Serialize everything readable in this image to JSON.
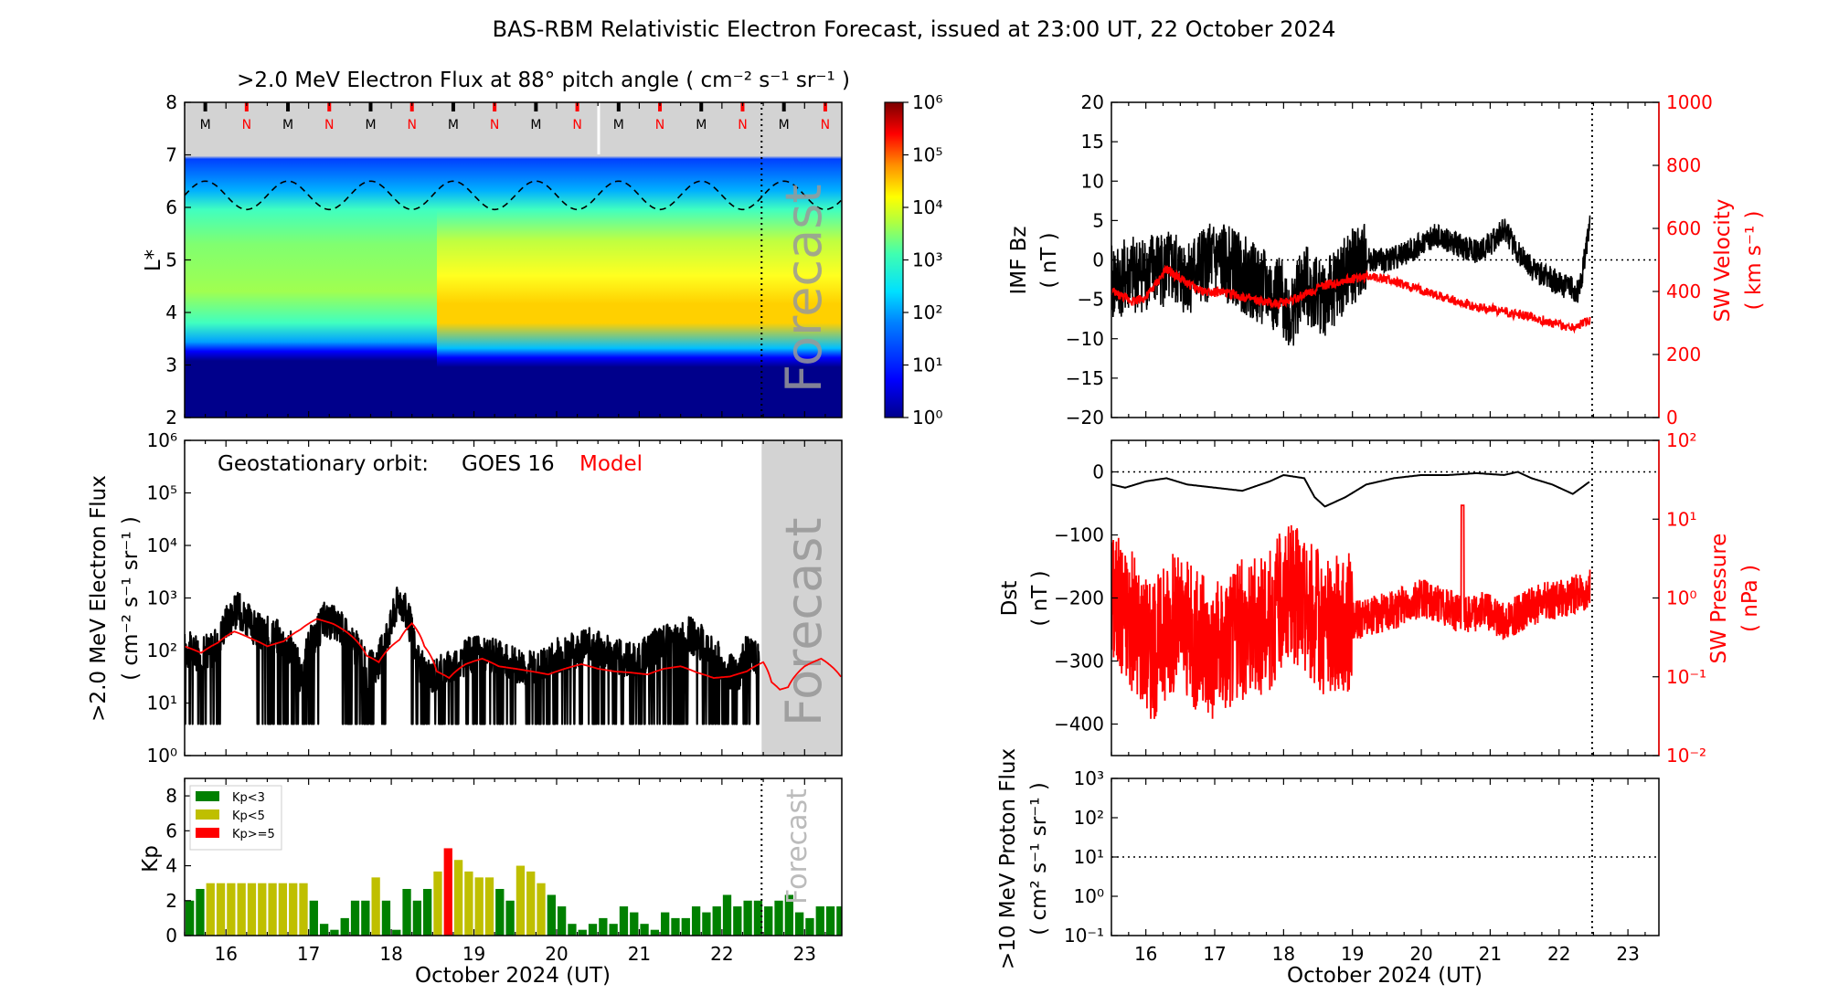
{
  "figure": {
    "title": "BAS-RBM Relativistic Electron Forecast, issued at 23:00 UT, 22 October 2024",
    "forecast_label": "Forecast",
    "xlabel": "October 2024 (UT)",
    "x_ticks": [
      "16",
      "17",
      "18",
      "19",
      "20",
      "21",
      "22",
      "23"
    ],
    "x_range": [
      15.5,
      23.45
    ],
    "issue_day": 22.48
  },
  "colors": {
    "observed": "#000000",
    "model": "#ff0000",
    "forecast_shade": "#d3d3d3",
    "kp_low": "#008000",
    "kp_mid": "#bfbf00",
    "kp_high": "#ff0000"
  },
  "chart_data": [
    {
      "id": "flux_map",
      "type": "heatmap",
      "title": ">2.0 MeV Electron Flux at 88° pitch angle ( cm⁻² s⁻¹ sr⁻¹ )",
      "ylabel": "L*",
      "ylim": [
        2,
        8
      ],
      "y_ticks": [
        "2",
        "3",
        "4",
        "5",
        "6",
        "7",
        "8"
      ],
      "colorbar": {
        "scale": "log",
        "range": [
          0,
          6
        ],
        "tick_labels": [
          "10⁰",
          "10¹",
          "10²",
          "10³",
          "10⁴",
          "10⁵",
          "10⁶"
        ]
      },
      "magnetopause_markers": [
        "M",
        "N",
        "M",
        "N",
        "M",
        "N",
        "M",
        "N",
        "M",
        "N",
        "M",
        "N",
        "M",
        "N",
        "M",
        "N"
      ],
      "notes": "Outer belt flux ~10^3 at L*=4-6 before 18.6 Oct, enhanced to ~10^4 at L*=3.8-4.3 after; slot/inner region below L*~3.2 near 10^0; dashed magnetopause trace oscillates between L*~6.0 and 6.5"
    },
    {
      "id": "geo_flux",
      "type": "line",
      "ylabel_1": ">2.0 MeV Electron Flux",
      "ylabel_2": "( cm⁻² s⁻¹ sr⁻¹ )",
      "yscale": "log",
      "ylim": [
        1,
        1000000
      ],
      "y_ticks": [
        "10⁰",
        "10¹",
        "10²",
        "10³",
        "10⁴",
        "10⁵",
        "10⁶"
      ],
      "legend": {
        "prefix": "Geostationary orbit:",
        "observed": "GOES 16",
        "model": "Model"
      },
      "series": [
        {
          "name": "GOES 16",
          "x": [
            15.5,
            15.7,
            15.9,
            16.0,
            16.15,
            16.3,
            16.45,
            16.6,
            16.75,
            16.9,
            17.1,
            17.2,
            17.35,
            17.5,
            17.7,
            17.85,
            18.0,
            18.1,
            18.2,
            18.3,
            18.45,
            18.6,
            18.8,
            19.0,
            19.2,
            19.4,
            19.6,
            19.8,
            20.0,
            20.2,
            20.4,
            20.6,
            20.8,
            21.0,
            21.2,
            21.4,
            21.6,
            21.8,
            22.0,
            22.2,
            22.3,
            22.45
          ],
          "y": [
            110,
            80,
            120,
            350,
            600,
            300,
            200,
            200,
            130,
            30,
            200,
            400,
            300,
            150,
            40,
            60,
            300,
            1000,
            400,
            60,
            30,
            40,
            60,
            90,
            80,
            60,
            50,
            50,
            80,
            100,
            120,
            90,
            70,
            60,
            120,
            150,
            200,
            120,
            50,
            30,
            100,
            60
          ],
          "floor": 4,
          "noise": true
        },
        {
          "name": "Model",
          "x": [
            15.5,
            15.7,
            15.9,
            16.1,
            16.3,
            16.5,
            16.7,
            16.9,
            17.1,
            17.3,
            17.5,
            17.7,
            17.85,
            18.0,
            18.1,
            18.25,
            18.4,
            18.55,
            18.7,
            18.9,
            19.1,
            19.3,
            19.5,
            19.7,
            19.9,
            20.1,
            20.3,
            20.5,
            20.7,
            20.9,
            21.1,
            21.3,
            21.5,
            21.7,
            21.9,
            22.1,
            22.3,
            22.5,
            22.6,
            22.7,
            22.8,
            23.0,
            23.2,
            23.45
          ],
          "y": [
            120,
            90,
            140,
            230,
            170,
            120,
            150,
            250,
            400,
            320,
            200,
            80,
            60,
            120,
            160,
            330,
            120,
            40,
            30,
            55,
            70,
            50,
            45,
            40,
            35,
            45,
            55,
            45,
            40,
            38,
            35,
            45,
            50,
            38,
            30,
            32,
            40,
            60,
            25,
            18,
            20,
            50,
            70,
            30
          ]
        }
      ]
    },
    {
      "id": "kp",
      "type": "bar",
      "ylabel": "Kp",
      "ylim": [
        0,
        9
      ],
      "y_ticks": [
        "0",
        "2",
        "4",
        "6",
        "8"
      ],
      "legend": [
        "Kp<3",
        "Kp<5",
        "Kp>=5"
      ],
      "bar_width_days": 0.125,
      "start_day": 15.5,
      "values": [
        2.0,
        2.67,
        3.0,
        3.0,
        3.0,
        3.0,
        3.0,
        3.0,
        3.0,
        3.0,
        3.0,
        3.0,
        2.0,
        0.67,
        0.33,
        1.0,
        2.0,
        2.0,
        3.33,
        2.0,
        0.33,
        2.67,
        2.0,
        2.67,
        3.67,
        5.0,
        4.33,
        3.67,
        3.33,
        3.33,
        2.67,
        2.0,
        4.0,
        3.67,
        3.0,
        2.33,
        1.67,
        0.67,
        0.33,
        0.67,
        1.0,
        0.67,
        1.67,
        1.33,
        0.67,
        0.33,
        1.33,
        1.0,
        1.0,
        1.67,
        1.33,
        1.67,
        2.33,
        1.67,
        2.0,
        2.0,
        1.67,
        2.0,
        2.33,
        1.33,
        1.0,
        1.67,
        1.67,
        1.67,
        1.67,
        1.67,
        1.67,
        1.67
      ]
    },
    {
      "id": "imf_sw",
      "type": "line",
      "ylabel_left_1": "IMF Bz",
      "ylabel_left_2": "( nT )",
      "ylabel_right_1": "SW Velocity",
      "ylabel_right_2": "( km s⁻¹ )",
      "ylim_left": [
        -20,
        20
      ],
      "ylim_right": [
        0,
        1000
      ],
      "y_ticks_left": [
        "−20",
        "−15",
        "−10",
        "−5",
        "0",
        "5",
        "10",
        "15",
        "20"
      ],
      "y_ticks_right": [
        "0",
        "200",
        "400",
        "600",
        "800",
        "1000"
      ],
      "series": [
        {
          "name": "IMF Bz",
          "axis": "left",
          "x": [
            15.5,
            15.8,
            16.2,
            16.6,
            17.0,
            17.3,
            17.6,
            18.0,
            18.1,
            18.3,
            18.6,
            18.8,
            19.0,
            19.2,
            19.5,
            19.8,
            20.0,
            20.2,
            20.5,
            20.8,
            21.0,
            21.2,
            21.4,
            21.6,
            21.8,
            22.0,
            22.3,
            22.45
          ],
          "y": [
            -3,
            -2,
            -1,
            -2,
            0,
            -1,
            -3,
            -5,
            -7,
            -3,
            -5,
            -3,
            -1,
            0,
            0,
            1,
            2,
            3,
            2,
            1,
            2,
            4,
            1,
            -1,
            -2,
            -3,
            -4,
            5
          ],
          "noise": true
        },
        {
          "name": "SW Velocity",
          "axis": "right",
          "x": [
            15.5,
            15.8,
            16.0,
            16.3,
            16.5,
            16.8,
            17.0,
            17.3,
            17.6,
            17.9,
            18.2,
            18.6,
            19.0,
            19.3,
            19.6,
            19.9,
            20.2,
            20.5,
            20.8,
            21.0,
            21.3,
            21.6,
            21.9,
            22.2,
            22.45
          ],
          "y": [
            400,
            370,
            380,
            470,
            440,
            400,
            400,
            390,
            370,
            360,
            380,
            420,
            440,
            450,
            430,
            410,
            390,
            370,
            350,
            345,
            330,
            320,
            300,
            285,
            310
          ],
          "noise": true
        }
      ]
    },
    {
      "id": "dst_pressure",
      "type": "line",
      "ylabel_left_1": "Dst",
      "ylabel_left_2": "( nT )",
      "ylabel_right_1": "SW Pressure",
      "ylabel_right_2": "( nPa )",
      "ylim_left": [
        -450,
        50
      ],
      "yscale_right": "log",
      "ylim_right": [
        0.01,
        100
      ],
      "y_ticks_left": [
        "−400",
        "−300",
        "−200",
        "−100",
        "0"
      ],
      "y_ticks_right": [
        "10⁻²",
        "10⁻¹",
        "10⁰",
        "10¹",
        "10²"
      ],
      "series": [
        {
          "name": "Dst",
          "axis": "left",
          "x": [
            15.5,
            15.7,
            16.0,
            16.3,
            16.6,
            17.0,
            17.4,
            17.8,
            18.0,
            18.3,
            18.45,
            18.6,
            18.9,
            19.2,
            19.6,
            20.0,
            20.4,
            20.8,
            21.2,
            21.4,
            21.6,
            21.9,
            22.2,
            22.45
          ],
          "y": [
            -20,
            -25,
            -15,
            -10,
            -20,
            -25,
            -30,
            -15,
            -5,
            -10,
            -40,
            -55,
            -40,
            -20,
            -10,
            -5,
            -5,
            -2,
            -5,
            0,
            -10,
            -20,
            -35,
            -15
          ]
        },
        {
          "name": "SW Pressure",
          "axis": "right",
          "x": [
            15.5,
            15.8,
            16.1,
            16.4,
            16.7,
            17.0,
            17.4,
            17.8,
            18.1,
            18.3,
            18.6,
            19.0,
            19.3,
            19.6,
            20.0,
            20.3,
            20.6,
            20.9,
            21.2,
            21.5,
            21.8,
            22.1,
            22.45
          ],
          "y": [
            1.0,
            0.5,
            0.2,
            0.5,
            0.3,
            0.2,
            0.4,
            0.5,
            1.2,
            0.8,
            0.4,
            0.5,
            0.6,
            0.7,
            1.0,
            0.8,
            0.6,
            0.7,
            0.5,
            0.7,
            0.9,
            1.0,
            1.3
          ],
          "noise": true
        }
      ]
    },
    {
      "id": "proton",
      "type": "line",
      "ylabel_1": ">10 MeV Proton Flux",
      "ylabel_2": "( cm² s⁻¹ sr⁻¹ )",
      "yscale": "log",
      "ylim": [
        0.1,
        1000
      ],
      "y_ticks": [
        "10⁻¹",
        "10⁰",
        "10¹",
        "10²",
        "10³"
      ],
      "threshold": 10,
      "series": []
    }
  ]
}
